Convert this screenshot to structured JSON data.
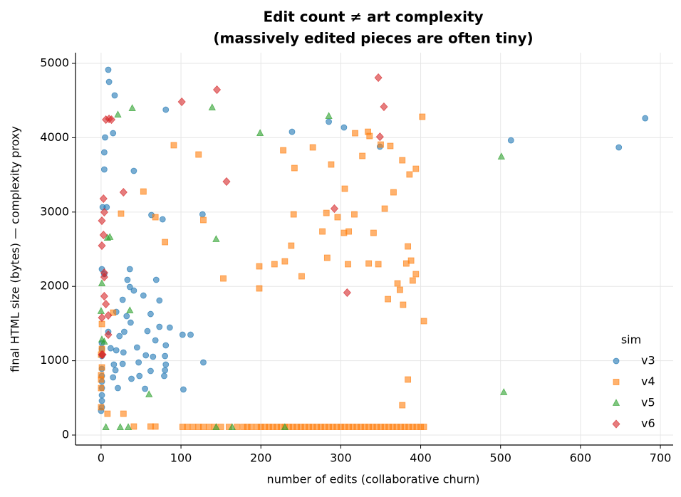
{
  "chart_data": {
    "type": "scatter",
    "title": [
      "Edit count ≠ art complexity",
      "(massively edited pieces are often tiny)"
    ],
    "xlabel": "number of edits (collaborative churn)",
    "ylabel": "final HTML size (bytes) — complexity proxy",
    "xlim": [
      -32,
      716
    ],
    "ylim": [
      -134,
      5144
    ],
    "xticks": [
      0,
      100,
      200,
      300,
      400,
      500,
      600,
      700
    ],
    "yticks": [
      0,
      1000,
      2000,
      3000,
      4000,
      5000
    ],
    "grid": true,
    "legend_title": "sim",
    "legend_position": "lower right",
    "series": [
      {
        "name": "v3",
        "color": "#1f77b4",
        "marker": "circle",
        "x": [
          9,
          10,
          17,
          81,
          5,
          15,
          4,
          4,
          41,
          2,
          7,
          63,
          77,
          127,
          239,
          285,
          304,
          349,
          513,
          648,
          681,
          1,
          4,
          36,
          69,
          33,
          36,
          41,
          53,
          27,
          73,
          19,
          62,
          32,
          37,
          86,
          58,
          73,
          9,
          29,
          23,
          102,
          112,
          68,
          81,
          45,
          12,
          19,
          28,
          1,
          1,
          56,
          65,
          80,
          16,
          27,
          47,
          128,
          81,
          1,
          18,
          62,
          80,
          1,
          1,
          15,
          38,
          48,
          79,
          1,
          21,
          55,
          103,
          1,
          1,
          1,
          0,
          1
        ],
        "values": [
          4914,
          4751,
          4569,
          4377,
          4004,
          4061,
          3803,
          3573,
          3554,
          3065,
          3065,
          2960,
          2902,
          2969,
          4080,
          4215,
          4138,
          3880,
          3965,
          3870,
          4262,
          2232,
          2165,
          2232,
          2088,
          2088,
          1992,
          1944,
          1877,
          1820,
          1810,
          1657,
          1628,
          1600,
          1513,
          1446,
          1398,
          1456,
          1389,
          1389,
          1331,
          1350,
          1350,
          1274,
          1207,
          1178,
          1168,
          1140,
          1111,
          1159,
          1063,
          1073,
          1054,
          1063,
          948,
          958,
          977,
          977,
          948,
          891,
          872,
          862,
          872,
          795,
          718,
          776,
          757,
          795,
          795,
          632,
          632,
          623,
          613,
          536,
          460,
          374,
          326,
          1236
        ]
      },
      {
        "name": "v4",
        "color": "#ff7f0e",
        "marker": "square",
        "x": [
          91,
          122,
          228,
          265,
          318,
          334,
          336,
          350,
          362,
          402,
          242,
          288,
          327,
          377,
          394,
          386,
          53,
          25,
          68,
          128,
          80,
          305,
          366,
          355,
          241,
          282,
          296,
          317,
          310,
          304,
          277,
          341,
          238,
          384,
          388,
          283,
          230,
          217,
          198,
          309,
          335,
          347,
          382,
          153,
          251,
          394,
          390,
          371,
          198,
          374,
          359,
          378,
          404,
          15,
          384,
          377,
          1,
          1,
          0,
          1,
          0,
          0,
          0,
          0,
          8,
          28,
          41,
          62,
          68,
          102,
          108,
          115,
          122,
          128,
          135,
          142,
          150,
          160,
          170,
          178,
          183,
          188,
          195,
          200,
          205,
          210,
          215,
          220,
          225,
          230,
          235,
          240,
          245,
          250,
          255,
          260,
          265,
          270,
          275,
          280,
          285,
          290,
          295,
          300,
          305,
          310,
          315,
          320,
          325,
          330,
          335,
          340,
          345,
          350,
          355,
          360,
          365,
          370,
          375,
          380,
          385,
          390,
          395,
          400,
          404
        ],
        "values": [
          3899,
          3774,
          3831,
          3870,
          4061,
          4080,
          4023,
          3908,
          3889,
          4282,
          3592,
          3640,
          3755,
          3697,
          3582,
          3506,
          3276,
          2979,
          2931,
          2893,
          2596,
          3314,
          3266,
          3046,
          2969,
          2988,
          2931,
          2969,
          2739,
          2720,
          2739,
          2720,
          2548,
          2538,
          2347,
          2385,
          2337,
          2299,
          2270,
          2299,
          2308,
          2299,
          2308,
          2107,
          2136,
          2165,
          2079,
          2040,
          1973,
          1954,
          1829,
          1753,
          1533,
          1647,
          747,
          402,
          1494,
          1159,
          1082,
          910,
          805,
          747,
          632,
          374,
          287,
          287,
          115,
          115,
          115,
          110,
          110,
          110,
          110,
          110,
          110,
          110,
          110,
          110,
          110,
          110,
          110,
          110,
          110,
          110,
          110,
          110,
          110,
          110,
          110,
          110,
          110,
          110,
          110,
          110,
          110,
          110,
          110,
          110,
          110,
          110,
          110,
          110,
          110,
          110,
          110,
          110,
          110,
          110,
          110,
          110,
          110,
          110,
          110,
          110,
          110,
          110,
          110,
          110,
          110,
          110,
          110,
          110,
          110,
          110,
          110
        ]
      },
      {
        "name": "v5",
        "color": "#2ca02c",
        "marker": "triangle",
        "x": [
          21,
          39,
          139,
          199,
          285,
          501,
          8,
          11,
          144,
          1,
          36,
          0,
          1,
          4,
          60,
          504,
          6,
          24,
          34,
          144,
          164,
          230
        ],
        "values": [
          4310,
          4396,
          4406,
          4061,
          4291,
          3745,
          2653,
          2663,
          2634,
          2040,
          1676,
          1667,
          1284,
          1255,
          546,
          575,
          105,
          105,
          105,
          105,
          105,
          105
        ]
      },
      {
        "name": "v6",
        "color": "#d62728",
        "marker": "diamond",
        "x": [
          6,
          10,
          13,
          101,
          145,
          347,
          354,
          349,
          28,
          157,
          3,
          4,
          1,
          3,
          1,
          4,
          4,
          4,
          6,
          1,
          9,
          9,
          1,
          2,
          292,
          308
        ],
        "values": [
          4243,
          4253,
          4243,
          4483,
          4646,
          4808,
          4416,
          4013,
          3266,
          3410,
          3180,
          2998,
          2883,
          2692,
          2548,
          2184,
          2126,
          1868,
          1762,
          1580,
          1609,
          1350,
          1082,
          1082,
          3046,
          1916
        ]
      }
    ]
  }
}
